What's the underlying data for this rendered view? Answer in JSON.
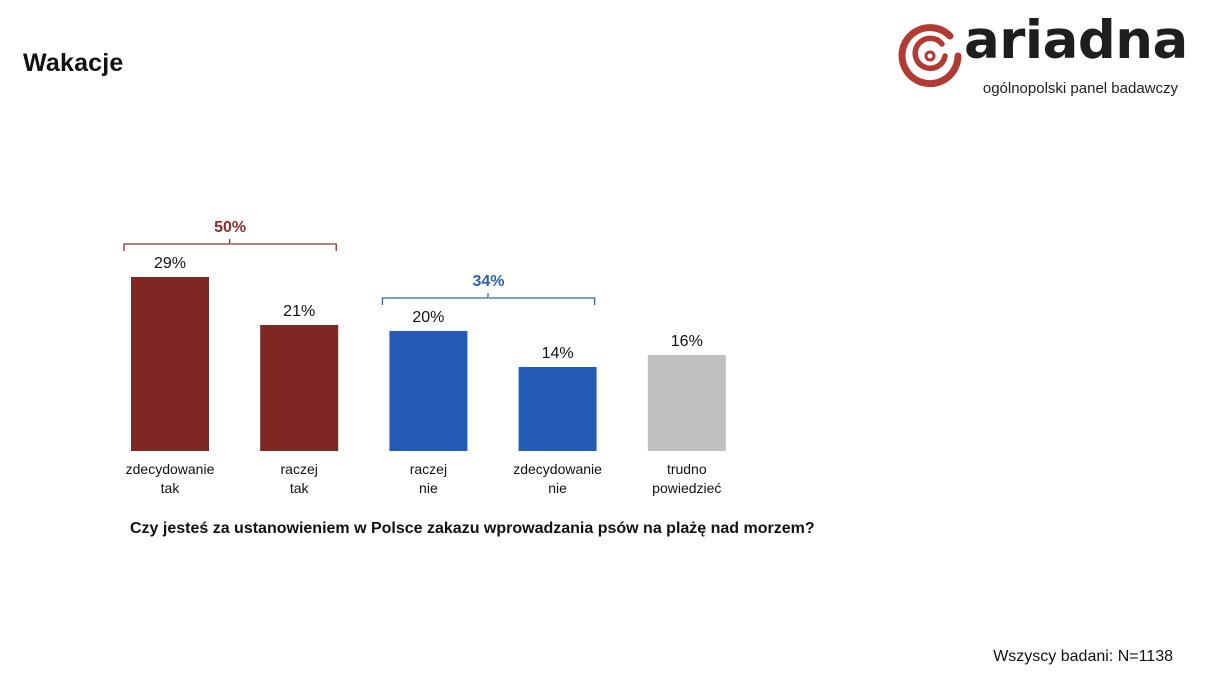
{
  "header": {
    "title": "Wakacje"
  },
  "logo": {
    "wordmark": "ariadna",
    "tagline": "ogólnopolski panel badawczy",
    "brand_color": "#b33a32"
  },
  "chart_data": {
    "type": "bar",
    "title": "Czy jesteś za ustanowieniem w Polsce zakazu wprowadzania psów na plażę nad morzem?",
    "categories": [
      [
        "zdecydowanie",
        "tak"
      ],
      [
        "raczej",
        "tak"
      ],
      [
        "raczej",
        "nie"
      ],
      [
        "zdecydowanie",
        "nie"
      ],
      [
        "trudno",
        "powiedzieć"
      ]
    ],
    "values": [
      29,
      21,
      20,
      14,
      16
    ],
    "value_labels": [
      "29%",
      "21%",
      "20%",
      "14%",
      "16%"
    ],
    "colors": [
      "#7f2722",
      "#7f2722",
      "#245bb5",
      "#245bb5",
      "#c0c0c0"
    ],
    "ylim": [
      0,
      30
    ],
    "grid": false,
    "legend": "none",
    "groups": [
      {
        "label": "50%",
        "value": 50,
        "from": 0,
        "to": 1,
        "color": "#8e2e29"
      },
      {
        "label": "34%",
        "value": 34,
        "from": 2,
        "to": 3,
        "color": "#2e63ad"
      }
    ]
  },
  "footer": {
    "base_note": "Wszyscy badani: N=1138"
  }
}
